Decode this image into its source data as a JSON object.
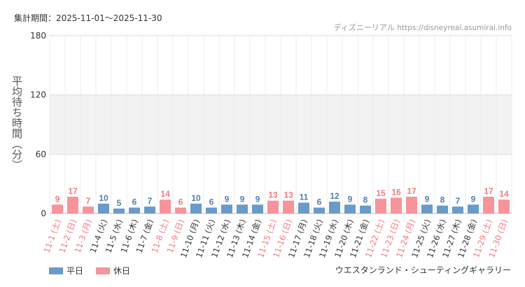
{
  "header": {
    "period_label": "集計期間：2025-11-01～2025-11-30",
    "source_name": "ディズニーリアル",
    "source_url": "https://disneyreal.asumirai.info"
  },
  "footer": {
    "attraction": "ウエスタンランド・シューティングギャラリー"
  },
  "colors": {
    "weekday": "#6b9ac9",
    "holiday": "#f7939a",
    "weekday_label": "#4f7fb3",
    "holiday_label": "#ef7a84",
    "band": "#f2f2f2"
  },
  "chart_data": {
    "type": "bar",
    "ylabel": "平均待ち時間（分）",
    "ylim": [
      0,
      180
    ],
    "yticks": [
      0,
      60,
      120,
      180
    ],
    "grid": true,
    "legend_position": "bottom-left",
    "categories": [
      "11-1 (土)",
      "11-2 (日)",
      "11-3 (月)",
      "11-4 (火)",
      "11-5 (水)",
      "11-6 (木)",
      "11-7 (金)",
      "11-8 (土)",
      "11-9 (日)",
      "11-10 (月)",
      "11-11 (火)",
      "11-12 (水)",
      "11-13 (木)",
      "11-14 (金)",
      "11-15 (土)",
      "11-16 (日)",
      "11-17 (月)",
      "11-18 (火)",
      "11-19 (水)",
      "11-20 (木)",
      "11-21 (金)",
      "11-22 (土)",
      "11-23 (日)",
      "11-24 (月)",
      "11-25 (火)",
      "11-26 (水)",
      "11-27 (木)",
      "11-28 (金)",
      "11-29 (土)",
      "11-30 (日)"
    ],
    "values": [
      9,
      17,
      7,
      10,
      5,
      6,
      7,
      14,
      6,
      10,
      6,
      9,
      9,
      9,
      13,
      13,
      11,
      6,
      12,
      9,
      8,
      15,
      16,
      17,
      9,
      8,
      7,
      9,
      17,
      14
    ],
    "day_type": [
      "holiday",
      "holiday",
      "holiday",
      "weekday",
      "weekday",
      "weekday",
      "weekday",
      "holiday",
      "holiday",
      "weekday",
      "weekday",
      "weekday",
      "weekday",
      "weekday",
      "holiday",
      "holiday",
      "weekday",
      "weekday",
      "weekday",
      "weekday",
      "weekday",
      "holiday",
      "holiday",
      "holiday",
      "weekday",
      "weekday",
      "weekday",
      "weekday",
      "holiday",
      "holiday"
    ],
    "series": [
      {
        "name": "平日",
        "key": "weekday"
      },
      {
        "name": "休日",
        "key": "holiday"
      }
    ]
  }
}
